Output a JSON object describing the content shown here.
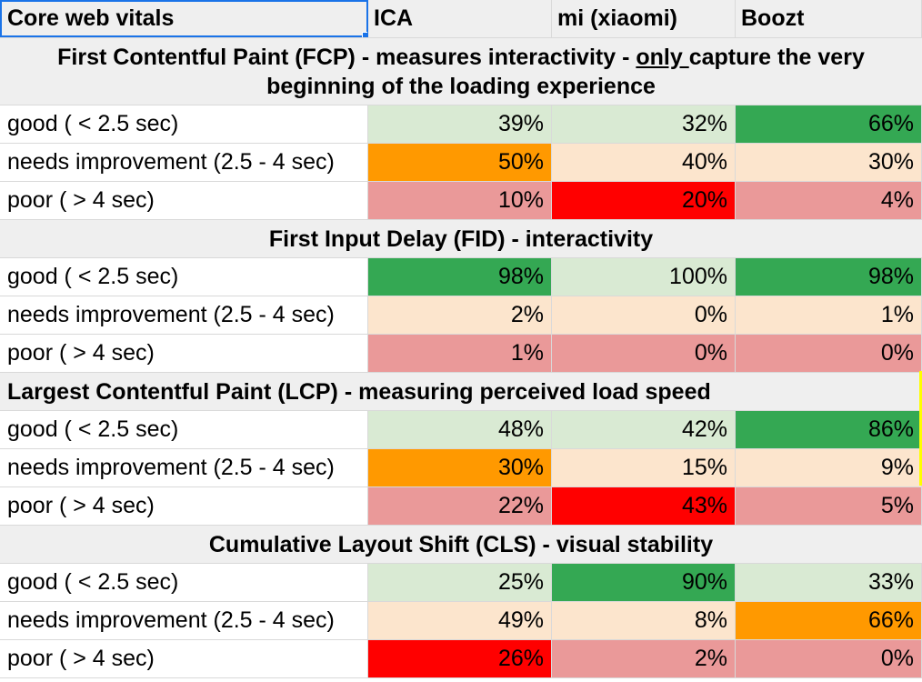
{
  "header": {
    "col0": "Core web vitals",
    "col1": "ICA",
    "col2": "mi (xiaomi)",
    "col3": "Boozt"
  },
  "colors": {
    "light_green": "#d9ead3",
    "dark_green": "#34a853",
    "orange": "#ff9900",
    "peach": "#fce5cd",
    "pink": "#ea9999",
    "red": "#ff0000",
    "section_bg": "#efefef",
    "selection_blue": "#1a73e8"
  },
  "sections": [
    {
      "title_before": "First Contentful Paint (FCP) - measures interactivity - ",
      "title_underlined": "only ",
      "title_after": "capture the very beginning of the loading experience",
      "rows": [
        {
          "label": "good ( < 2.5 sec)",
          "values": [
            "39%",
            "32%",
            "66%"
          ],
          "fills": [
            "light_green",
            "light_green",
            "dark_green"
          ]
        },
        {
          "label": "needs improvement (2.5 - 4 sec)",
          "values": [
            "50%",
            "40%",
            "30%"
          ],
          "fills": [
            "orange",
            "peach",
            "peach"
          ]
        },
        {
          "label": "poor ( > 4 sec)",
          "values": [
            "10%",
            "20%",
            "4%"
          ],
          "fills": [
            "pink",
            "red",
            "pink"
          ]
        }
      ]
    },
    {
      "title": "First Input Delay (FID) - interactivity",
      "rows": [
        {
          "label": "good ( < 2.5 sec)",
          "values": [
            "98%",
            "100%",
            "98%"
          ],
          "fills": [
            "dark_green",
            "light_green",
            "dark_green"
          ]
        },
        {
          "label": "needs improvement (2.5 - 4 sec)",
          "values": [
            "2%",
            "0%",
            "1%"
          ],
          "fills": [
            "peach",
            "peach",
            "peach"
          ]
        },
        {
          "label": "poor ( > 4 sec)",
          "values": [
            "1%",
            "0%",
            "0%"
          ],
          "fills": [
            "pink",
            "pink",
            "pink"
          ]
        }
      ]
    },
    {
      "title": "Largest Contentful Paint (LCP) - measuring perceived load speed",
      "rows": [
        {
          "label": "good ( < 2.5 sec)",
          "values": [
            "48%",
            "42%",
            "86%"
          ],
          "fills": [
            "light_green",
            "light_green",
            "dark_green"
          ]
        },
        {
          "label": "needs improvement (2.5 - 4 sec)",
          "values": [
            "30%",
            "15%",
            "9%"
          ],
          "fills": [
            "orange",
            "peach",
            "peach"
          ]
        },
        {
          "label": "poor ( > 4 sec)",
          "values": [
            "22%",
            "43%",
            "5%"
          ],
          "fills": [
            "pink",
            "red",
            "pink"
          ]
        }
      ]
    },
    {
      "title": "Cumulative Layout Shift (CLS) - visual stability",
      "rows": [
        {
          "label": "good ( < 2.5 sec)",
          "values": [
            "25%",
            "90%",
            "33%"
          ],
          "fills": [
            "light_green",
            "dark_green",
            "light_green"
          ]
        },
        {
          "label": "needs improvement (2.5 - 4 sec)",
          "values": [
            "49%",
            "8%",
            "66%"
          ],
          "fills": [
            "peach",
            "peach",
            "orange"
          ]
        },
        {
          "label": "poor ( > 4 sec)",
          "values": [
            "26%",
            "2%",
            "0%"
          ],
          "fills": [
            "red",
            "pink",
            "pink"
          ]
        }
      ]
    }
  ]
}
